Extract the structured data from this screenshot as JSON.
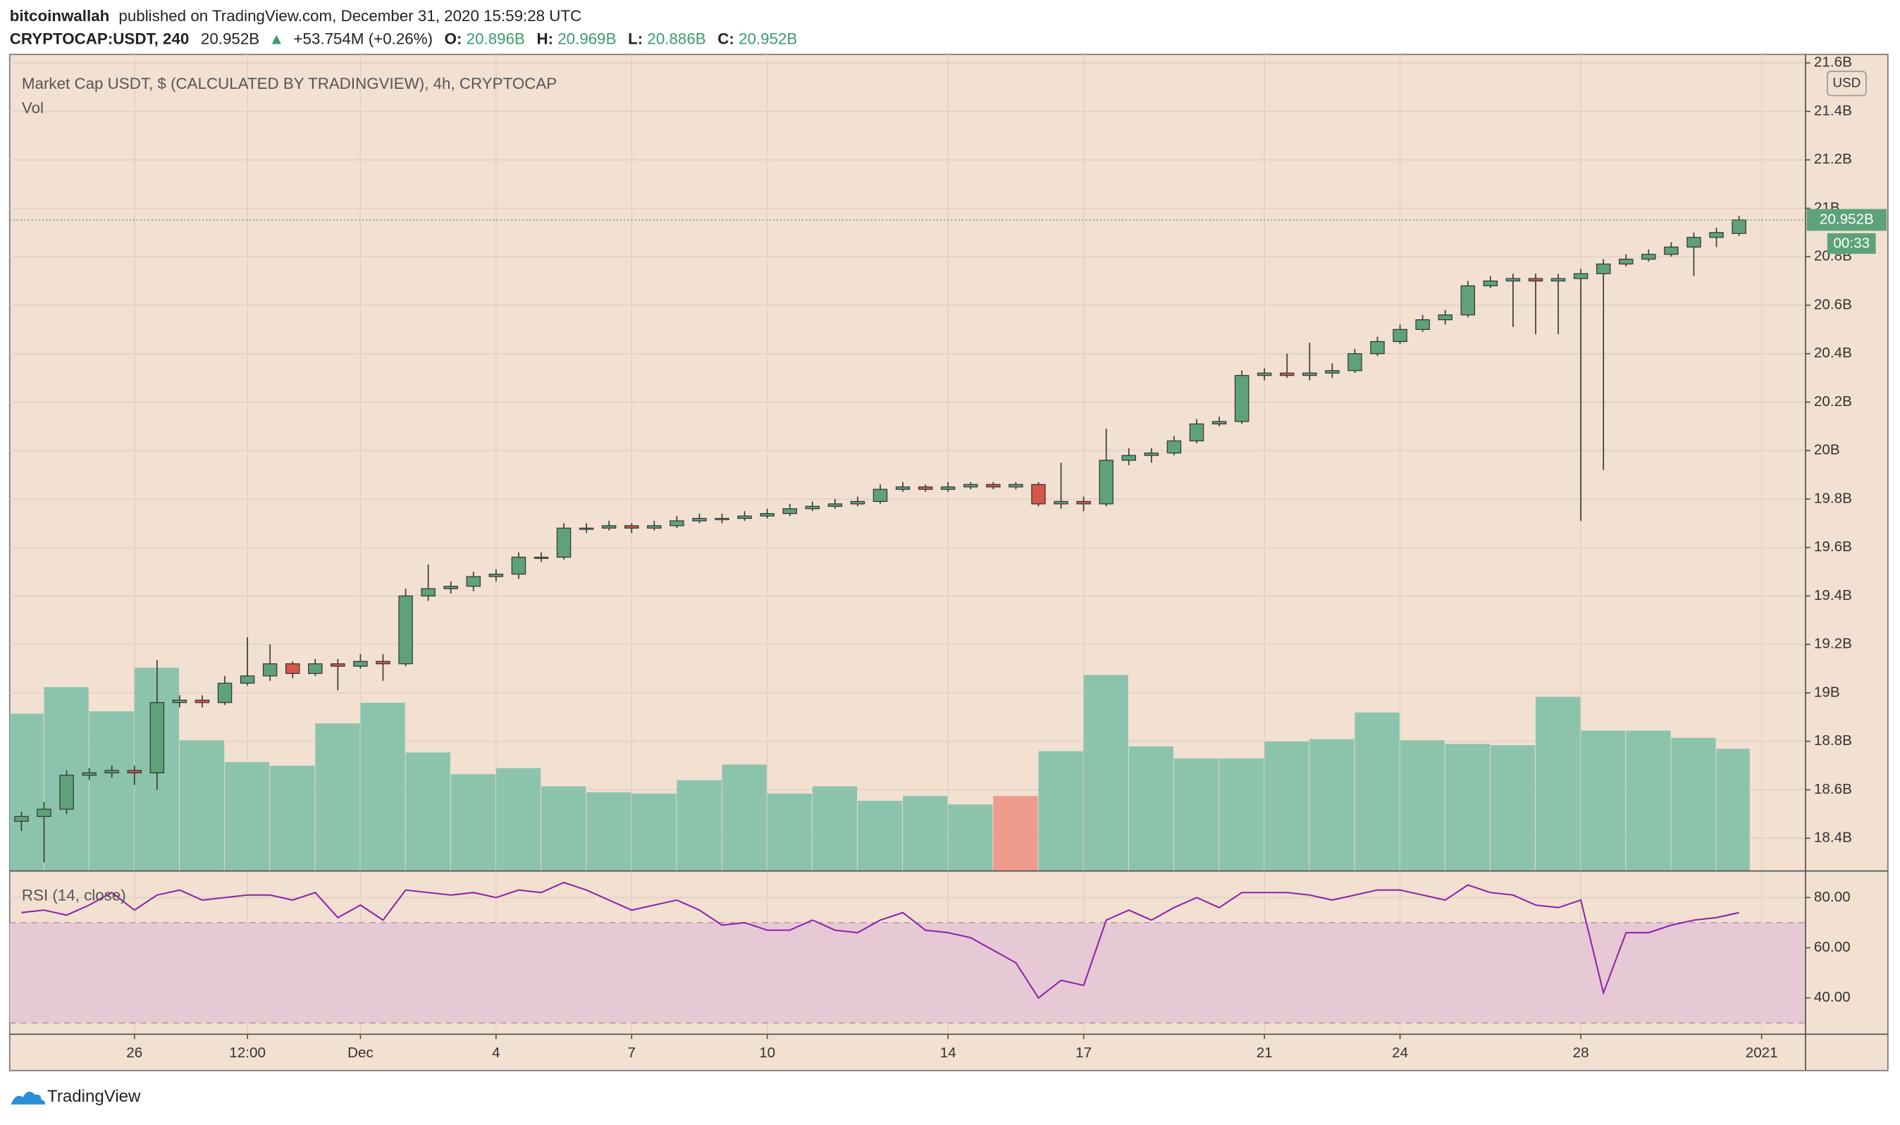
{
  "header": {
    "publisher": "bitcoinwallah",
    "published": "published on TradingView.com, December 31, 2020 15:59:28 UTC",
    "symbol": "CRYPTOCAP:USDT, 240",
    "last": "20.952B",
    "arrow": "▲",
    "change": "+53.754M (+0.26%)",
    "o_label": "O:",
    "o": "20.896B",
    "h_label": "H:",
    "h": "20.969B",
    "l_label": "L:",
    "l": "20.886B",
    "c_label": "C:",
    "c": "20.952B"
  },
  "chart_data": [
    {
      "type": "candlestick",
      "title": "Market Cap USDT, $ (CALCULATED BY TRADINGVIEW), 4h, CRYPTOCAP",
      "currency": "USD",
      "last_price_label": "20.952B",
      "countdown": "00:33",
      "up_color": "#5ea27a",
      "down_color": "#d4574a",
      "grid": true,
      "xlim": [
        0.24,
        39.97
      ],
      "xticks": [
        {
          "value": 3,
          "label": "26"
        },
        {
          "value": 5.5,
          "label": "12:00"
        },
        {
          "value": 8,
          "label": "Dec"
        },
        {
          "value": 11,
          "label": "4"
        },
        {
          "value": 14,
          "label": "7"
        },
        {
          "value": 17,
          "label": "10"
        },
        {
          "value": 21,
          "label": "14"
        },
        {
          "value": 24,
          "label": "17"
        },
        {
          "value": 28,
          "label": "21"
        },
        {
          "value": 31,
          "label": "24"
        },
        {
          "value": 35,
          "label": "28"
        },
        {
          "value": 39,
          "label": "2021"
        }
      ],
      "ylim": [
        18.265,
        21.61
      ],
      "yticks": [
        {
          "value": 18.4,
          "label": "18.4B"
        },
        {
          "value": 18.6,
          "label": "18.6B"
        },
        {
          "value": 18.8,
          "label": "18.8B"
        },
        {
          "value": 19,
          "label": "19B"
        },
        {
          "value": 19.2,
          "label": "19.2B"
        },
        {
          "value": 19.4,
          "label": "19.4B"
        },
        {
          "value": 19.6,
          "label": "19.6B"
        },
        {
          "value": 19.8,
          "label": "19.8B"
        },
        {
          "value": 20,
          "label": "20B"
        },
        {
          "value": 20.2,
          "label": "20.2B"
        },
        {
          "value": 20.4,
          "label": "20.4B"
        },
        {
          "value": 20.6,
          "label": "20.6B"
        },
        {
          "value": 20.8,
          "label": "20.8B"
        },
        {
          "value": 21,
          "label": "21B"
        },
        {
          "value": 21.2,
          "label": "21.2B"
        },
        {
          "value": 21.4,
          "label": "21.4B"
        },
        {
          "value": 21.6,
          "label": "21.6B"
        }
      ],
      "x": [
        0.5,
        1,
        1.5,
        2,
        2.5,
        3,
        3.5,
        4,
        4.5,
        5,
        5.5,
        6,
        6.5,
        7,
        7.5,
        8,
        8.5,
        9,
        9.5,
        10,
        10.5,
        11,
        11.5,
        12,
        12.5,
        13,
        13.5,
        14,
        14.5,
        15,
        15.5,
        16,
        16.5,
        17,
        17.5,
        18,
        18.5,
        19,
        19.5,
        20,
        20.5,
        21,
        21.5,
        22,
        22.5,
        23,
        23.5,
        24,
        24.5,
        25,
        25.5,
        26,
        26.5,
        27,
        27.5,
        28,
        28.5,
        29,
        29.5,
        30,
        30.5,
        31,
        31.5,
        32,
        32.5,
        33,
        33.5,
        34,
        34.5,
        35,
        35.5,
        36,
        36.5,
        37,
        37.5,
        38,
        38.5
      ],
      "open": [
        18.47,
        18.49,
        18.52,
        18.66,
        18.67,
        18.68,
        18.67,
        18.96,
        18.97,
        18.96,
        19.04,
        19.07,
        19.12,
        19.08,
        19.12,
        19.11,
        19.13,
        19.12,
        19.4,
        19.43,
        19.44,
        19.48,
        19.49,
        19.56,
        19.56,
        19.68,
        19.68,
        19.69,
        19.68,
        19.69,
        19.71,
        19.72,
        19.72,
        19.73,
        19.74,
        19.76,
        19.77,
        19.78,
        19.79,
        19.84,
        19.85,
        19.84,
        19.85,
        19.86,
        19.85,
        19.86,
        19.78,
        19.79,
        19.78,
        19.96,
        19.98,
        19.99,
        20.04,
        20.11,
        20.12,
        20.31,
        20.32,
        20.31,
        20.32,
        20.33,
        20.4,
        20.45,
        20.5,
        20.54,
        20.56,
        20.68,
        20.7,
        20.71,
        20.7,
        20.71,
        20.73,
        20.77,
        20.79,
        20.81,
        20.84,
        20.88,
        20.896
      ],
      "high": [
        18.51,
        18.55,
        18.68,
        18.69,
        18.7,
        18.7,
        19.135,
        18.99,
        18.99,
        19.07,
        19.23,
        19.2,
        19.13,
        19.14,
        19.14,
        19.16,
        19.16,
        19.43,
        19.53,
        19.46,
        19.5,
        19.51,
        19.58,
        19.58,
        19.7,
        19.7,
        19.71,
        19.7,
        19.71,
        19.73,
        19.74,
        19.74,
        19.75,
        19.76,
        19.78,
        19.79,
        19.8,
        19.81,
        19.86,
        19.87,
        19.86,
        19.87,
        19.87,
        19.87,
        19.87,
        19.87,
        19.95,
        19.81,
        20.09,
        20.01,
        20.01,
        20.06,
        20.13,
        20.14,
        20.33,
        20.34,
        20.4,
        20.445,
        20.36,
        20.42,
        20.47,
        20.52,
        20.56,
        20.58,
        20.7,
        20.72,
        20.73,
        20.73,
        20.73,
        20.75,
        20.79,
        20.81,
        20.83,
        20.86,
        20.9,
        20.92,
        20.969
      ],
      "low": [
        18.43,
        18.3,
        18.5,
        18.64,
        18.65,
        18.62,
        18.6,
        18.94,
        18.94,
        18.95,
        19.03,
        19.05,
        19.06,
        19.07,
        19.01,
        19.1,
        19.05,
        19.11,
        19.38,
        19.41,
        19.42,
        19.46,
        19.47,
        19.54,
        19.55,
        19.66,
        19.67,
        19.66,
        19.67,
        19.68,
        19.7,
        19.7,
        19.71,
        19.72,
        19.73,
        19.75,
        19.76,
        19.77,
        19.78,
        19.83,
        19.83,
        19.83,
        19.84,
        19.84,
        19.84,
        19.77,
        19.76,
        19.75,
        19.77,
        19.94,
        19.95,
        19.98,
        20.03,
        20.1,
        20.11,
        20.29,
        20.3,
        20.29,
        20.3,
        20.32,
        20.39,
        20.44,
        20.49,
        20.52,
        20.55,
        20.67,
        20.51,
        20.48,
        20.48,
        19.71,
        19.92,
        20.76,
        20.78,
        20.8,
        20.72,
        20.84,
        20.886
      ],
      "close": [
        18.49,
        18.52,
        18.66,
        18.67,
        18.68,
        18.67,
        18.96,
        18.97,
        18.96,
        19.04,
        19.07,
        19.12,
        19.08,
        19.12,
        19.11,
        19.13,
        19.12,
        19.4,
        19.43,
        19.44,
        19.48,
        19.49,
        19.56,
        19.56,
        19.68,
        19.68,
        19.69,
        19.68,
        19.69,
        19.71,
        19.72,
        19.72,
        19.73,
        19.74,
        19.76,
        19.77,
        19.78,
        19.79,
        19.84,
        19.85,
        19.84,
        19.85,
        19.86,
        19.85,
        19.86,
        19.78,
        19.79,
        19.78,
        19.96,
        19.98,
        19.99,
        20.04,
        20.11,
        20.12,
        20.31,
        20.32,
        20.31,
        20.32,
        20.33,
        20.4,
        20.45,
        20.5,
        20.54,
        20.56,
        20.68,
        20.7,
        20.71,
        20.7,
        20.71,
        20.73,
        20.77,
        20.79,
        20.81,
        20.84,
        20.88,
        20.9,
        20.952
      ]
    },
    {
      "type": "volume",
      "name": "Vol",
      "up_color": "#8cc3ad",
      "down_color": "#ef9b8c",
      "x": [
        0,
        1,
        2,
        3,
        4,
        5,
        6,
        7,
        8,
        9,
        10,
        11,
        12,
        13,
        14,
        15,
        16,
        17,
        18,
        19,
        20,
        21,
        22,
        23,
        24,
        25,
        26,
        27,
        28,
        29,
        30,
        31,
        32,
        33,
        34,
        35,
        36,
        37,
        38
      ],
      "values": [
        130,
        152,
        132,
        168,
        108,
        90,
        87,
        122,
        139,
        98,
        80,
        85,
        70,
        65,
        64,
        75,
        88,
        64,
        70,
        58,
        62,
        55,
        62,
        99,
        162,
        103,
        93,
        93,
        107,
        109,
        131,
        108,
        105,
        104,
        144,
        116,
        116,
        110,
        101
      ]
    },
    {
      "type": "line",
      "name": "RSI (14, close)",
      "color": "#8e24aa",
      "band_color": "#e7c9d6",
      "bands": [
        30,
        70
      ],
      "ylim": [
        25.5,
        90.6
      ],
      "yticks": [
        {
          "value": 40,
          "label": "40.00"
        },
        {
          "value": 60,
          "label": "60.00"
        },
        {
          "value": 80,
          "label": "80.00"
        }
      ],
      "x": [
        0.5,
        1,
        1.5,
        2,
        2.5,
        3,
        3.5,
        4,
        4.5,
        5,
        5.5,
        6,
        6.5,
        7,
        7.5,
        8,
        8.5,
        9,
        9.5,
        10,
        10.5,
        11,
        11.5,
        12,
        12.5,
        13,
        13.5,
        14,
        14.5,
        15,
        15.5,
        16,
        16.5,
        17,
        17.5,
        18,
        18.5,
        19,
        19.5,
        20,
        20.5,
        21,
        21.5,
        22,
        22.5,
        23,
        23.5,
        24,
        24.5,
        25,
        25.5,
        26,
        26.5,
        27,
        27.5,
        28,
        28.5,
        29,
        29.5,
        30,
        30.5,
        31,
        31.5,
        32,
        32.5,
        33,
        33.5,
        34,
        34.5,
        35,
        35.5,
        36,
        36.5,
        37,
        37.5,
        38,
        38.5
      ],
      "values": [
        74,
        75,
        73,
        77,
        82,
        75,
        81,
        83,
        79,
        80,
        81,
        81,
        79,
        82,
        72,
        77,
        71,
        83,
        82,
        81,
        82,
        80,
        83,
        82,
        86,
        83,
        79,
        75,
        77,
        79,
        75,
        69,
        70,
        67,
        67,
        71,
        67,
        66,
        71,
        74,
        67,
        66,
        64,
        59,
        54,
        40,
        47,
        45,
        71,
        75,
        71,
        76,
        80,
        76,
        82,
        82,
        82,
        81,
        79,
        81,
        83,
        83,
        81,
        79,
        85,
        82,
        81,
        77,
        76,
        79,
        42,
        66,
        66,
        69,
        71,
        72,
        74
      ]
    }
  ],
  "footer": {
    "brand": "TradingView"
  }
}
